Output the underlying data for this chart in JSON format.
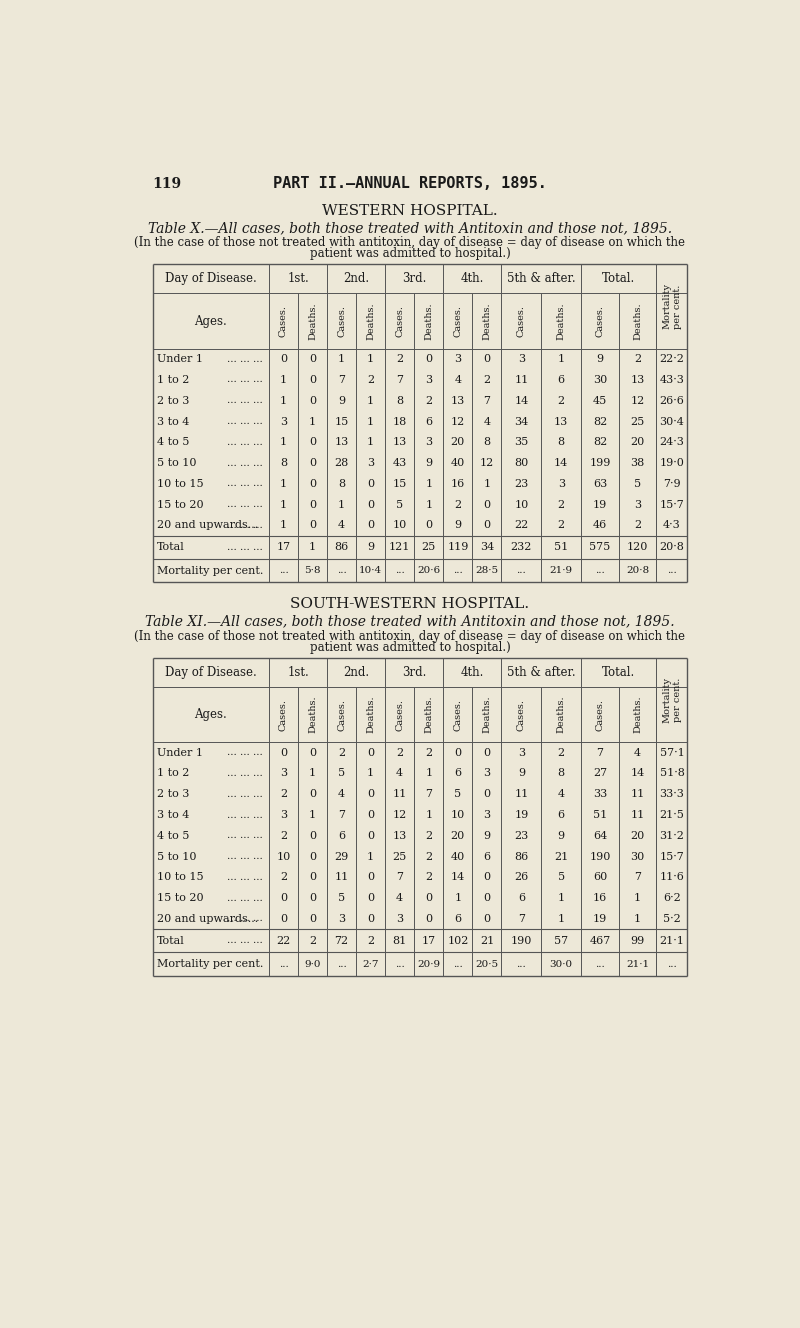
{
  "bg_color": "#EDE8D8",
  "text_color": "#1a1a1a",
  "page_num": "119",
  "page_title": "PART II.—ANNUAL REPORTS, 1895.",
  "table1": {
    "hospital": "WESTERN HOSPITAL.",
    "title": "Table X.—All cases, both those treated with Antitoxin and those not, 1895.",
    "subtitle1": "(In the case of those not treated with antitoxin, day of disease = day of disease on which the",
    "subtitle2": "patient was admitted to hospital.)",
    "col_groups": [
      "1st.",
      "2nd.",
      "3rd.",
      "4th.",
      "5th & after.",
      "Total."
    ],
    "ages": [
      "Under 1  ...  ...  ...",
      "1 to 2   ...  ...  ...",
      "2 to 3   ...  ...  ...",
      "3 to 4   ...  ...  ...",
      "4 to 5   ...  ...  ...",
      "5 to 10  ...  ...  ...",
      "10 to 15 ...  ...  ...",
      "15 to 20 ...  ...  ...",
      "20 and upwards...  ..."
    ],
    "age_display": [
      "Under 1",
      "1 to 2",
      "2 to 3",
      "3 to 4",
      "4 to 5",
      "5 to 10",
      "10 to 15",
      "15 to 20",
      "20 and upwards..."
    ],
    "data": [
      [
        0,
        0,
        1,
        1,
        2,
        0,
        3,
        0,
        3,
        1,
        9,
        2,
        "22·2"
      ],
      [
        1,
        0,
        7,
        2,
        7,
        3,
        4,
        2,
        11,
        6,
        30,
        13,
        "43·3"
      ],
      [
        1,
        0,
        9,
        1,
        8,
        2,
        13,
        7,
        14,
        2,
        45,
        12,
        "26·6"
      ],
      [
        3,
        1,
        15,
        1,
        18,
        6,
        12,
        4,
        34,
        13,
        82,
        25,
        "30·4"
      ],
      [
        1,
        0,
        13,
        1,
        13,
        3,
        20,
        8,
        35,
        8,
        82,
        20,
        "24·3"
      ],
      [
        8,
        0,
        28,
        3,
        43,
        9,
        40,
        12,
        80,
        14,
        199,
        38,
        "19·0"
      ],
      [
        1,
        0,
        8,
        0,
        15,
        1,
        16,
        1,
        23,
        3,
        63,
        5,
        "7·9"
      ],
      [
        1,
        0,
        1,
        0,
        5,
        1,
        2,
        0,
        10,
        2,
        19,
        3,
        "15·7"
      ],
      [
        1,
        0,
        4,
        0,
        10,
        0,
        9,
        0,
        22,
        2,
        46,
        2,
        "4·3"
      ]
    ],
    "totals": [
      17,
      1,
      86,
      9,
      121,
      25,
      119,
      34,
      232,
      51,
      575,
      120,
      "20·8"
    ],
    "mortality": [
      "...",
      "5·8",
      "...",
      "10·4",
      "...",
      "20·6",
      "...",
      "28·5",
      "...",
      "21·9",
      "...",
      "20·8",
      "..."
    ]
  },
  "table2": {
    "hospital": "SOUTH-WESTERN HOSPITAL.",
    "title": "Table XI.—All cases, both those treated with Antitoxin and those not, 1895.",
    "subtitle1": "(In the case of those not treated with antitoxin, day of disease = day of disease on which the",
    "subtitle2": "patient was admitted to hospital.)",
    "col_groups": [
      "1st.",
      "2nd.",
      "3rd.",
      "4th.",
      "5th & after.",
      "Total."
    ],
    "ages": [
      "Under 1  ...  ...  ...",
      "1 to 2   ...  ...  ...",
      "2 to 3   ...  ...  ...",
      "3 to 4   ...  ...  ...",
      "4 to 5   ...  ...  ...",
      "5 to 10  ...  ...  ...",
      "10 to 15 ...  ...  ...",
      "15 to 20 ...  ...  ...",
      "20 and upwards...  ..."
    ],
    "age_display": [
      "Under 1",
      "1 to 2",
      "2 to 3",
      "3 to 4",
      "4 to 5",
      "5 to 10",
      "10 to 15",
      "15 to 20",
      "20 and upwards..."
    ],
    "data": [
      [
        0,
        0,
        2,
        0,
        2,
        2,
        0,
        0,
        3,
        2,
        7,
        4,
        "57·1"
      ],
      [
        3,
        1,
        5,
        1,
        4,
        1,
        6,
        3,
        9,
        8,
        27,
        14,
        "51·8"
      ],
      [
        2,
        0,
        4,
        0,
        11,
        7,
        5,
        0,
        11,
        4,
        33,
        11,
        "33·3"
      ],
      [
        3,
        1,
        7,
        0,
        12,
        1,
        10,
        3,
        19,
        6,
        51,
        11,
        "21·5"
      ],
      [
        2,
        0,
        6,
        0,
        13,
        2,
        20,
        9,
        23,
        9,
        64,
        20,
        "31·2"
      ],
      [
        10,
        0,
        29,
        1,
        25,
        2,
        40,
        6,
        86,
        21,
        190,
        30,
        "15·7"
      ],
      [
        2,
        0,
        11,
        0,
        7,
        2,
        14,
        0,
        26,
        5,
        60,
        7,
        "11·6"
      ],
      [
        0,
        0,
        5,
        0,
        4,
        0,
        1,
        0,
        6,
        1,
        16,
        1,
        "6·2"
      ],
      [
        0,
        0,
        3,
        0,
        3,
        0,
        6,
        0,
        7,
        1,
        19,
        1,
        "5·2"
      ]
    ],
    "totals": [
      22,
      2,
      72,
      2,
      81,
      17,
      102,
      21,
      190,
      57,
      467,
      99,
      "21·1"
    ],
    "mortality": [
      "...",
      "9·0",
      "...",
      "2·7",
      "...",
      "20·9",
      "...",
      "20·5",
      "...",
      "30·0",
      "...",
      "21·1",
      "..."
    ]
  }
}
